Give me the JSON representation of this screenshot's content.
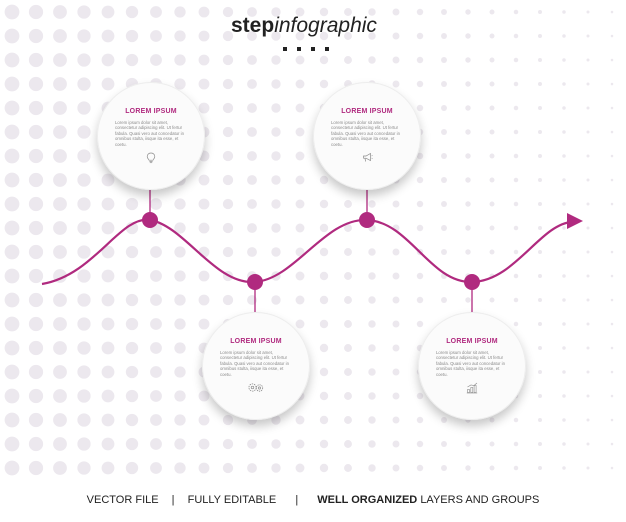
{
  "title": {
    "bold": "step",
    "italic": "infographic"
  },
  "colors": {
    "accent": "#b02a7f",
    "dot_pattern": "#ece8ee",
    "card": "#fbfbfb"
  },
  "steps": [
    {
      "title": "LOREM IPSUM",
      "text": "Lorem ipsum dolor sit amet, consectetur adipiscing elit. Ut fertur fabula. Quasi vero aut concedatur in omnibus stulta, iisque ita esse, et coetu.",
      "icon": "lightbulb-icon"
    },
    {
      "title": "LOREM IPSUM",
      "text": "Lorem ipsum dolor sit amet, consectetur adipiscing elit. Ut fertur fabula. Quasi vero aut concedatur in omnibus stulta, iisque ita esse, et coetu.",
      "icon": "gears-icon"
    },
    {
      "title": "LOREM IPSUM",
      "text": "Lorem ipsum dolor sit amet, consectetur adipiscing elit. Ut fertur fabula. Quasi vero aut concedatur in omnibus stulta, iisque ita esse, et coetu.",
      "icon": "megaphone-icon"
    },
    {
      "title": "LOREM IPSUM",
      "text": "Lorem ipsum dolor sit amet, consectetur adipiscing elit. Ut fertur fabula. Quasi vero aut concedatur in omnibus stulta, iisque ita esse, et coetu.",
      "icon": "growth-chart-icon"
    }
  ],
  "footer": {
    "part1": "VECTOR FILE",
    "sep": "|",
    "part2": "FULLY EDITABLE",
    "part3_bold": "WELL ORGANIZED",
    "part3_rest": "LAYERS AND GROUPS"
  }
}
